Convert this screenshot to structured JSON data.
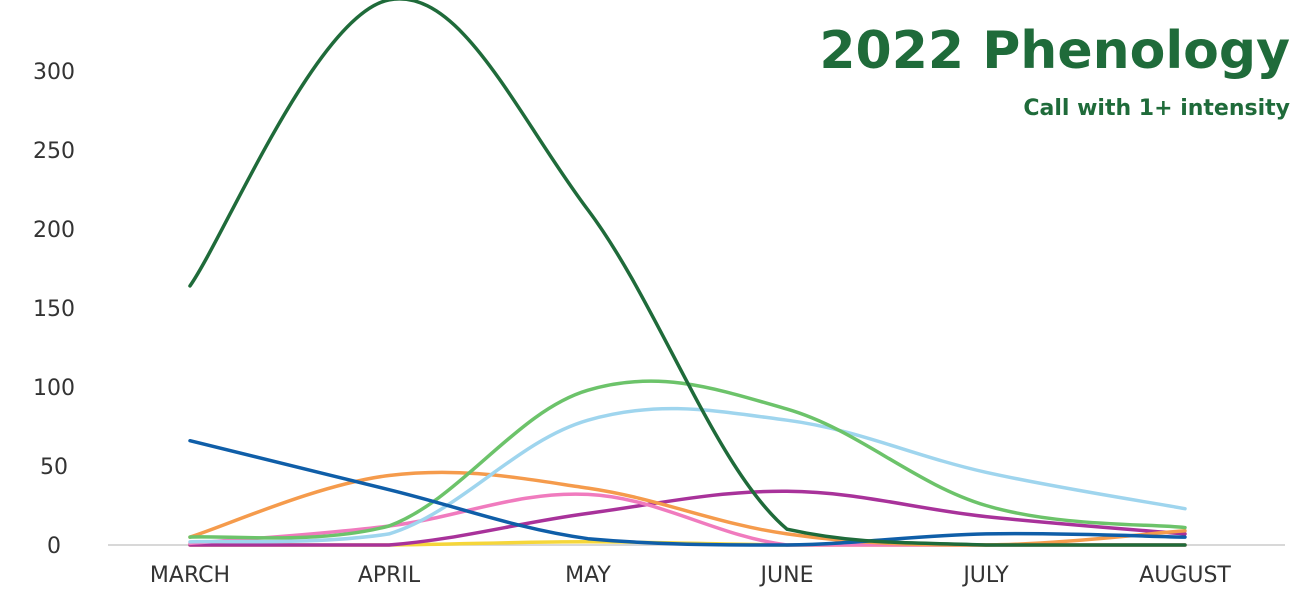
{
  "chart_data": {
    "type": "line",
    "title": "2022 Phenology",
    "subtitle": "Call with 1+ intensity",
    "categories": [
      "MARCH",
      "APRIL",
      "MAY",
      "JUNE",
      "JULY",
      "AUGUST"
    ],
    "yticks": [
      "0",
      "50",
      "100",
      "150",
      "200",
      "250",
      "300"
    ],
    "ylim": [
      0,
      330
    ],
    "grid": false,
    "series": [
      {
        "color": "#1f6b3a",
        "values": [
          164,
          345,
          212,
          10,
          0,
          0
        ]
      },
      {
        "color": "#6cc36a",
        "values": [
          5,
          12,
          98,
          86,
          25,
          11
        ]
      },
      {
        "color": "#9fd5ee",
        "values": [
          2,
          7,
          79,
          79,
          46,
          23
        ]
      },
      {
        "color": "#f59b4c",
        "values": [
          5,
          44,
          36,
          7,
          0,
          9
        ]
      },
      {
        "color": "#f07bbe",
        "values": [
          1,
          12,
          32,
          0,
          0,
          0
        ]
      },
      {
        "color": "#a8329a",
        "values": [
          0,
          0,
          20,
          34,
          18,
          7
        ]
      },
      {
        "color": "#0f5ea8",
        "values": [
          66,
          35,
          4,
          0,
          7,
          5
        ]
      },
      {
        "color": "#f5d63a",
        "values": [
          0,
          0,
          2,
          0,
          0,
          0
        ]
      }
    ]
  }
}
